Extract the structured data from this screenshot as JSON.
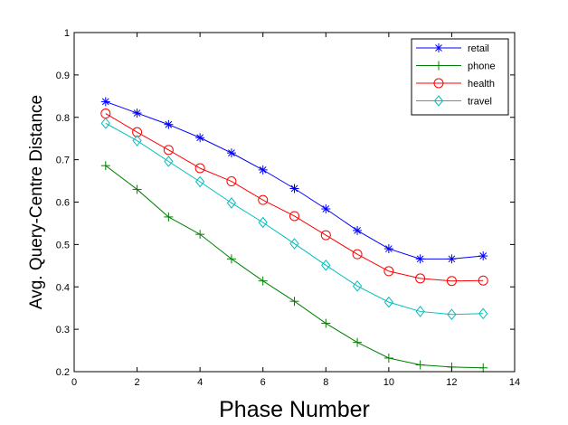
{
  "chart_data": {
    "type": "line",
    "title": "",
    "xlabel": "Phase Number",
    "ylabel": "Avg. Query-Centre Distance",
    "xlim": [
      0,
      14
    ],
    "ylim": [
      0.2,
      1
    ],
    "xticks": [
      0,
      2,
      4,
      6,
      8,
      10,
      12,
      14
    ],
    "yticks": [
      0.2,
      0.3,
      0.4,
      0.5,
      0.6,
      0.7,
      0.8,
      0.9,
      1
    ],
    "xtick_labels": [
      "0",
      "2",
      "4",
      "6",
      "8",
      "10",
      "12",
      "14"
    ],
    "ytick_labels": [
      "0.2",
      "0.3",
      "0.4",
      "0.5",
      "0.6",
      "0.7",
      "0.8",
      "0.9",
      "1"
    ],
    "grid": false,
    "legend_position": "top-right",
    "x": [
      1,
      2,
      3,
      4,
      5,
      6,
      7,
      8,
      9,
      10,
      11,
      12,
      13
    ],
    "series": [
      {
        "name": "retail",
        "color": "#0000ff",
        "marker": "asterisk",
        "values": [
          0.837,
          0.81,
          0.783,
          0.752,
          0.716,
          0.676,
          0.632,
          0.584,
          0.533,
          0.49,
          0.466,
          0.466,
          0.473
        ]
      },
      {
        "name": "phone",
        "color": "#008000",
        "marker": "plus",
        "values": [
          0.686,
          0.63,
          0.565,
          0.524,
          0.466,
          0.414,
          0.366,
          0.314,
          0.269,
          0.232,
          0.216,
          0.211,
          0.209
        ]
      },
      {
        "name": "health",
        "color": "#ff0000",
        "marker": "circle",
        "values": [
          0.809,
          0.765,
          0.723,
          0.68,
          0.649,
          0.605,
          0.567,
          0.522,
          0.477,
          0.437,
          0.42,
          0.414,
          0.415
        ]
      },
      {
        "name": "travel",
        "color": "#00bfbf",
        "marker": "diamond",
        "values": [
          0.786,
          0.745,
          0.696,
          0.648,
          0.598,
          0.552,
          0.502,
          0.451,
          0.402,
          0.364,
          0.342,
          0.335,
          0.337
        ]
      }
    ]
  }
}
